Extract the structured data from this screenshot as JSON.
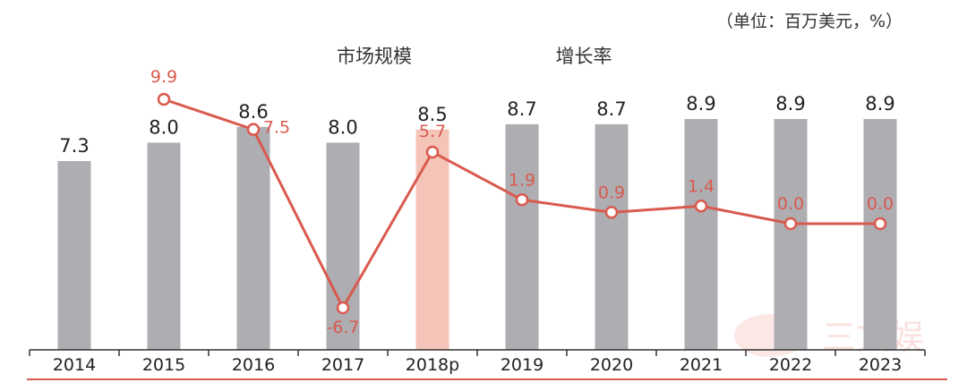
{
  "unit_label": "（单位：百万美元，%）",
  "legend": {
    "bar_series": "市场规模",
    "line_series": "增长率"
  },
  "watermark": {
    "text": "三文娱"
  },
  "colors": {
    "bar": "#aeadb2",
    "bar_highlight": "#f5c4b8",
    "line": "#d95a4e",
    "axis": "#333333",
    "bottom_rule": "#d95a4e"
  },
  "chart_data": {
    "type": "bar",
    "categories": [
      "2014",
      "2015",
      "2016",
      "2017",
      "2018p",
      "2019",
      "2020",
      "2021",
      "2022",
      "2023"
    ],
    "highlight_category": "2018p",
    "series": [
      {
        "name": "市场规模",
        "type": "bar",
        "values": [
          7.3,
          8.0,
          8.6,
          8.0,
          8.5,
          8.7,
          8.7,
          8.9,
          8.9,
          8.9
        ],
        "labels": [
          "7.3",
          "8.0",
          "8.6",
          "8.0",
          "8.5",
          "8.7",
          "8.7",
          "8.9",
          "8.9",
          "8.9"
        ]
      },
      {
        "name": "增长率",
        "type": "line",
        "values": [
          null,
          9.9,
          7.5,
          -6.7,
          5.7,
          1.9,
          0.9,
          1.4,
          0.0,
          0.0
        ],
        "labels": [
          "",
          "9.9",
          "7.5",
          "-6.7",
          "5.7",
          "1.9",
          "0.9",
          "1.4",
          "0.0",
          "0.0"
        ]
      }
    ],
    "title": "",
    "xlabel": "",
    "ylabel": "",
    "grid": false
  }
}
